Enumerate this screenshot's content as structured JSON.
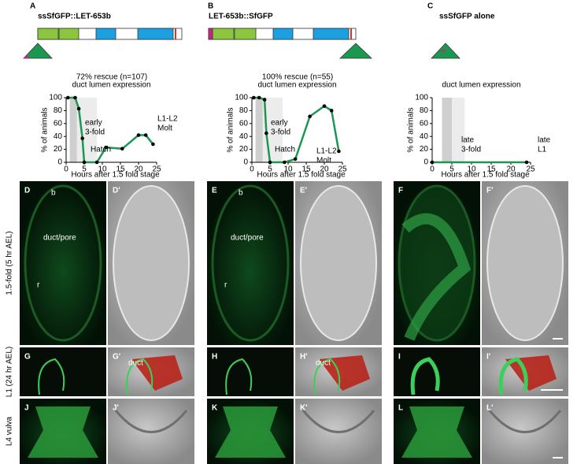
{
  "panels": [
    {
      "letter": "A",
      "construct": "ssSfGFP::LET-653b",
      "rescue": "72% rescue (n=107)"
    },
    {
      "letter": "B",
      "construct": "LET-653b::SfGFP",
      "rescue": "100% rescue (n=55)"
    },
    {
      "letter": "C",
      "construct": "ssSfGFP alone"
    }
  ],
  "chart_data": [
    {
      "type": "line",
      "title": "duct lumen expression",
      "xlabel": "Hours after 1.5 fold stage",
      "ylabel": "% of animals",
      "color": "#1a9850",
      "x": [
        0.5,
        2.5,
        3.5,
        4.5,
        5,
        8.5,
        11,
        15.5,
        20,
        22,
        24
      ],
      "values": [
        100,
        100,
        83,
        37,
        0,
        0,
        23,
        21,
        42,
        42,
        28
      ],
      "xlim": [
        0,
        25
      ],
      "ylim": [
        0,
        100
      ],
      "xticks": [
        0,
        5,
        10,
        15,
        20,
        25
      ],
      "yticks": [
        0,
        20,
        40,
        60,
        80,
        100
      ],
      "annotations": [
        [
          "early",
          "3-fold"
        ],
        [
          "Hatch"
        ],
        [
          "L1-L2",
          "Molt"
        ]
      ]
    },
    {
      "type": "line",
      "title": "duct lumen expression",
      "xlabel": "Hours after 1.5 fold stage",
      "ylabel": "% of animals",
      "color": "#1a9850",
      "x": [
        0.5,
        2,
        3.5,
        4,
        5,
        9,
        12,
        16,
        20,
        22,
        24
      ],
      "values": [
        100,
        100,
        97,
        45,
        0,
        0,
        5,
        71,
        87,
        80,
        17
      ],
      "xlim": [
        0,
        25
      ],
      "ylim": [
        0,
        100
      ],
      "xticks": [
        0,
        5,
        10,
        15,
        20,
        25
      ],
      "yticks": [
        0,
        20,
        40,
        60,
        80,
        100
      ],
      "annotations": [
        [
          "early",
          "3-fold"
        ],
        [
          "Hatch"
        ],
        [
          "L1-L2",
          "Molt"
        ]
      ]
    },
    {
      "type": "line",
      "title": "duct lumen expression",
      "xlabel": "Hours after 1.5 fold stage",
      "ylabel": "% of animals",
      "color": "#1a9850",
      "x": [
        0,
        24
      ],
      "values": [
        0,
        0
      ],
      "xlim": [
        0,
        25
      ],
      "ylim": [
        0,
        100
      ],
      "xticks": [
        0,
        5,
        10,
        15,
        20,
        25
      ],
      "yticks": [
        0,
        20,
        40,
        60,
        80,
        100
      ],
      "annotations": [
        [
          "late",
          "3-fold"
        ],
        [
          "late",
          "L1"
        ]
      ]
    }
  ],
  "row_labels": [
    "1.5-fold (5 hr AEL)",
    "L1 (24 hr AEL)",
    "L4 vulva"
  ],
  "images": [
    {
      "label": "D",
      "notes": [
        "b",
        "duct/pore",
        "r"
      ]
    },
    {
      "label": "D'"
    },
    {
      "label": "E",
      "notes": [
        "b",
        "duct/pore",
        "r"
      ]
    },
    {
      "label": "E'"
    },
    {
      "label": "F"
    },
    {
      "label": "F'"
    },
    {
      "label": "G"
    },
    {
      "label": "G'",
      "notes": [
        "duct"
      ]
    },
    {
      "label": "H"
    },
    {
      "label": "H'",
      "notes": [
        "duct"
      ]
    },
    {
      "label": "I"
    },
    {
      "label": "I'"
    },
    {
      "label": "J"
    },
    {
      "label": "J'"
    },
    {
      "label": "K"
    },
    {
      "label": "K'"
    },
    {
      "label": "L"
    },
    {
      "label": "L'"
    }
  ]
}
